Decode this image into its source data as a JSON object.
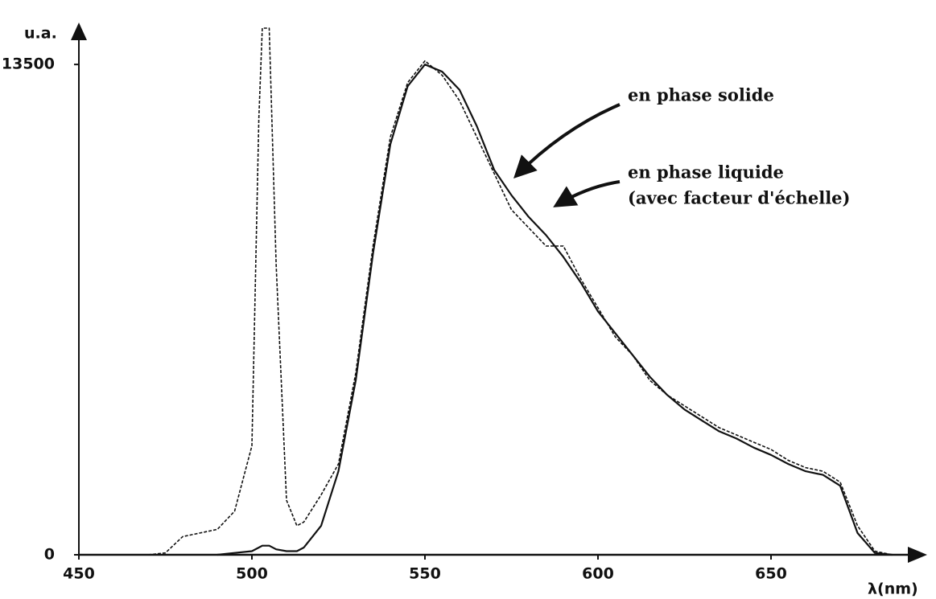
{
  "chart_data": {
    "type": "line",
    "y_label": "u.a.",
    "x_label": "λ(nm)",
    "annotation": "(avec facteur d'échelle)",
    "x": [
      470,
      475,
      480,
      485,
      490,
      495,
      500,
      502,
      503,
      505,
      507,
      510,
      513,
      515,
      520,
      525,
      530,
      535,
      540,
      545,
      550,
      555,
      560,
      565,
      570,
      575,
      580,
      585,
      590,
      595,
      600,
      605,
      610,
      615,
      620,
      625,
      630,
      635,
      640,
      645,
      650,
      655,
      660,
      665,
      670,
      675,
      680,
      685
    ],
    "series": [
      {
        "name": "en phase solide",
        "color": "#111111",
        "line_style": "solid",
        "values": [
          null,
          null,
          null,
          null,
          0,
          50,
          100,
          200,
          250,
          250,
          150,
          100,
          100,
          200,
          800,
          2300,
          4800,
          8300,
          11300,
          12900,
          13500,
          13300,
          12800,
          11800,
          10600,
          9900,
          9300,
          8800,
          8200,
          7500,
          6700,
          6100,
          5500,
          4900,
          4400,
          4000,
          3700,
          3400,
          3200,
          2950,
          2750,
          2500,
          2300,
          2200,
          1900,
          600,
          50,
          0
        ]
      },
      {
        "name": "en phase liquide",
        "color": "#111111",
        "line_style": "dashed",
        "values": [
          0,
          50,
          500,
          600,
          700,
          1200,
          3000,
          12000,
          14500,
          14500,
          8000,
          1500,
          800,
          900,
          1650,
          2500,
          5000,
          8500,
          11500,
          13000,
          13600,
          13200,
          12500,
          11500,
          10500,
          9500,
          9000,
          8500,
          8500,
          7600,
          6800,
          6000,
          5500,
          4800,
          4400,
          4100,
          3800,
          3500,
          3300,
          3100,
          2900,
          2600,
          2400,
          2300,
          2000,
          800,
          100,
          0
        ]
      }
    ],
    "xlim": [
      450,
      695
    ],
    "xticks": [
      450,
      500,
      550,
      600,
      650
    ],
    "ylim": [
      0,
      14500
    ],
    "yticks": [
      0,
      13500
    ],
    "grid": false
  }
}
